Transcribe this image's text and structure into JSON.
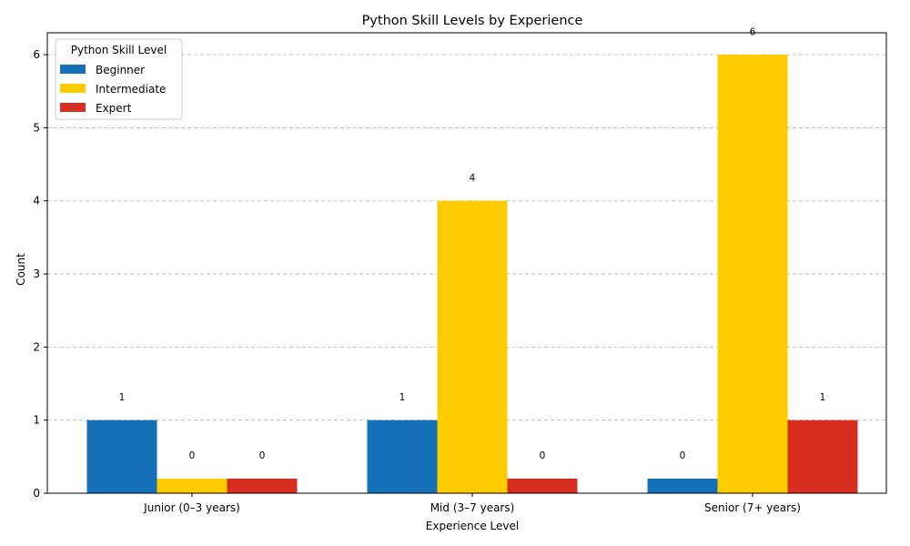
{
  "chart_data": {
    "type": "bar",
    "title": "Python Skill Levels by Experience",
    "xlabel": "Experience Level",
    "ylabel": "Count",
    "categories": [
      "Junior (0–3 years)",
      "Mid (3–7 years)",
      "Senior (7+ years)"
    ],
    "series": [
      {
        "name": "Beginner",
        "values": [
          1,
          1,
          0
        ],
        "color": "#1570b8"
      },
      {
        "name": "Intermediate",
        "values": [
          0,
          4,
          6
        ],
        "color": "#ffcc00"
      },
      {
        "name": "Expert",
        "values": [
          0,
          0,
          1
        ],
        "color": "#d82e22"
      }
    ],
    "zero_stub_value": 0.2,
    "ylim": [
      0,
      6.3
    ],
    "yticks": [
      0,
      1,
      2,
      3,
      4,
      5,
      6
    ],
    "grid": "y dashed",
    "legend": {
      "title": "Python Skill Level",
      "placement": "top-left"
    }
  }
}
